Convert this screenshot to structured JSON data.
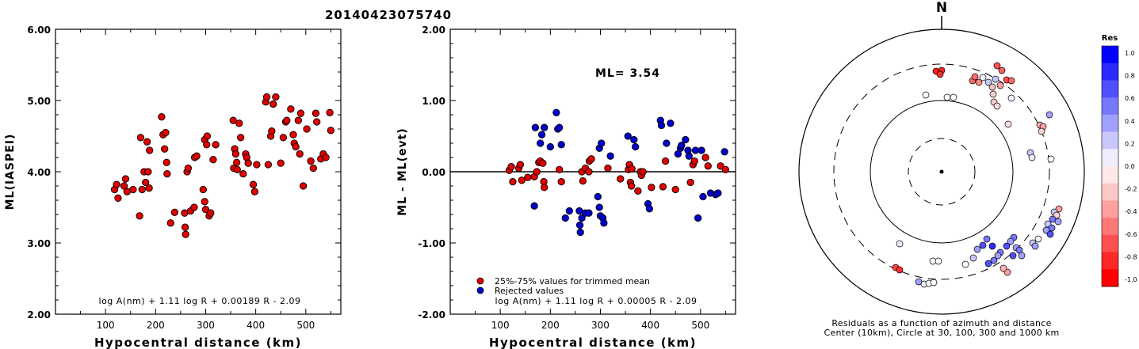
{
  "title": "20140423075740",
  "chart_data": [
    {
      "type": "scatter",
      "xlabel": "Hypocentral distance (km)",
      "ylabel": "ML(IASPEI)",
      "xlim": [
        0,
        570
      ],
      "ylim": [
        2.0,
        6.0
      ],
      "xticks": [
        "100",
        "200",
        "300",
        "400",
        "500"
      ],
      "yticks": [
        "2.00",
        "3.00",
        "4.00",
        "5.00",
        "6.00"
      ],
      "formula": "log A(nm) + 1.11 log R + 0.00189 R - 2.09",
      "marker_color": "#e00000",
      "points": [
        [
          118,
          3.75
        ],
        [
          122,
          3.82
        ],
        [
          125,
          3.63
        ],
        [
          137,
          3.8
        ],
        [
          140,
          3.9
        ],
        [
          143,
          3.72
        ],
        [
          155,
          3.75
        ],
        [
          168,
          3.38
        ],
        [
          170,
          4.48
        ],
        [
          173,
          3.75
        ],
        [
          177,
          4.0
        ],
        [
          180,
          3.85
        ],
        [
          183,
          4.42
        ],
        [
          185,
          4.0
        ],
        [
          187,
          3.77
        ],
        [
          188,
          4.3
        ],
        [
          212,
          4.77
        ],
        [
          215,
          4.52
        ],
        [
          218,
          4.32
        ],
        [
          220,
          4.55
        ],
        [
          222,
          4.13
        ],
        [
          223,
          3.97
        ],
        [
          230,
          3.28
        ],
        [
          238,
          3.43
        ],
        [
          258,
          3.42
        ],
        [
          259,
          3.22
        ],
        [
          260,
          3.12
        ],
        [
          263,
          4.0
        ],
        [
          265,
          4.05
        ],
        [
          270,
          3.45
        ],
        [
          277,
          3.5
        ],
        [
          278,
          4.2
        ],
        [
          282,
          4.22
        ],
        [
          295,
          3.75
        ],
        [
          298,
          3.58
        ],
        [
          298,
          4.45
        ],
        [
          300,
          3.47
        ],
        [
          302,
          4.38
        ],
        [
          303,
          4.5
        ],
        [
          307,
          3.38
        ],
        [
          310,
          3.42
        ],
        [
          315,
          4.17
        ],
        [
          320,
          4.38
        ],
        [
          355,
          4.72
        ],
        [
          356,
          4.05
        ],
        [
          358,
          4.32
        ],
        [
          360,
          4.25
        ],
        [
          362,
          4.13
        ],
        [
          363,
          4.03
        ],
        [
          367,
          4.68
        ],
        [
          370,
          4.48
        ],
        [
          375,
          3.97
        ],
        [
          380,
          4.25
        ],
        [
          382,
          4.2
        ],
        [
          385,
          4.12
        ],
        [
          395,
          3.82
        ],
        [
          398,
          3.72
        ],
        [
          402,
          4.1
        ],
        [
          420,
          4.98
        ],
        [
          422,
          5.05
        ],
        [
          425,
          4.1
        ],
        [
          430,
          4.5
        ],
        [
          432,
          4.57
        ],
        [
          435,
          4.95
        ],
        [
          440,
          5.05
        ],
        [
          450,
          4.12
        ],
        [
          455,
          4.48
        ],
        [
          460,
          4.7
        ],
        [
          462,
          4.72
        ],
        [
          470,
          4.88
        ],
        [
          475,
          4.52
        ],
        [
          477,
          4.4
        ],
        [
          480,
          4.35
        ],
        [
          485,
          4.72
        ],
        [
          488,
          4.25
        ],
        [
          490,
          4.82
        ],
        [
          495,
          3.8
        ],
        [
          502,
          4.6
        ],
        [
          510,
          4.15
        ],
        [
          515,
          4.05
        ],
        [
          520,
          4.82
        ],
        [
          522,
          4.7
        ],
        [
          530,
          4.18
        ],
        [
          535,
          4.25
        ],
        [
          540,
          4.2
        ],
        [
          548,
          4.83
        ],
        [
          550,
          4.58
        ]
      ]
    },
    {
      "type": "scatter",
      "xlabel": "Hypocentral distance (km)",
      "ylabel": "ML - ML(evt)",
      "xlim": [
        0,
        570
      ],
      "ylim": [
        -2.0,
        2.0
      ],
      "xticks": [
        "100",
        "200",
        "300",
        "400",
        "500"
      ],
      "yticks": [
        "-2.00",
        "-1.00",
        "0.00",
        "1.00",
        "2.00"
      ],
      "annotation": "ML= 3.54",
      "formula": "log A(nm) + 1.11 log R + 0.00005 R - 2.09",
      "legend": [
        {
          "label": "25%-75% values for trimmed mean",
          "color": "#e00000"
        },
        {
          "label": "Rejected values",
          "color": "#0000cc"
        }
      ],
      "series": [
        {
          "color": "#e00000",
          "points": [
            [
              118,
              0.02
            ],
            [
              122,
              0.07
            ],
            [
              125,
              -0.14
            ],
            [
              137,
              0.05
            ],
            [
              140,
              0.1
            ],
            [
              143,
              -0.12
            ],
            [
              155,
              -0.08
            ],
            [
              168,
              -0.07
            ],
            [
              173,
              0.0
            ],
            [
              177,
              0.13
            ],
            [
              180,
              0.15
            ],
            [
              185,
              0.12
            ],
            [
              187,
              -0.14
            ],
            [
              188,
              -0.22
            ],
            [
              218,
              0.03
            ],
            [
              222,
              -0.14
            ],
            [
              263,
              0.0
            ],
            [
              265,
              -0.13
            ],
            [
              270,
              0.05
            ],
            [
              277,
              0.0
            ],
            [
              278,
              0.15
            ],
            [
              282,
              0.18
            ],
            [
              315,
              0.05
            ],
            [
              340,
              -0.1
            ],
            [
              356,
              0.03
            ],
            [
              358,
              0.1
            ],
            [
              360,
              -0.15
            ],
            [
              362,
              -0.2
            ],
            [
              363,
              0.04
            ],
            [
              375,
              -0.27
            ],
            [
              380,
              0.0
            ],
            [
              382,
              -0.05
            ],
            [
              385,
              0.0
            ],
            [
              402,
              -0.22
            ],
            [
              425,
              -0.21
            ],
            [
              430,
              0.15
            ],
            [
              450,
              -0.25
            ],
            [
              480,
              -0.15
            ],
            [
              485,
              0.1
            ],
            [
              488,
              0.15
            ],
            [
              510,
              0.2
            ],
            [
              515,
              0.08
            ],
            [
              540,
              0.08
            ],
            [
              550,
              0.03
            ]
          ]
        },
        {
          "color": "#0000cc",
          "points": [
            [
              170,
              0.62
            ],
            [
              168,
              -0.48
            ],
            [
              180,
              0.4
            ],
            [
              183,
              0.52
            ],
            [
              188,
              0.62
            ],
            [
              200,
              0.35
            ],
            [
              212,
              0.83
            ],
            [
              215,
              0.6
            ],
            [
              218,
              0.62
            ],
            [
              222,
              0.38
            ],
            [
              230,
              -0.65
            ],
            [
              238,
              -0.55
            ],
            [
              258,
              -0.55
            ],
            [
              259,
              -0.75
            ],
            [
              260,
              -0.85
            ],
            [
              263,
              -0.65
            ],
            [
              270,
              -0.58
            ],
            [
              277,
              -0.58
            ],
            [
              295,
              -0.35
            ],
            [
              298,
              -0.5
            ],
            [
              298,
              0.33
            ],
            [
              300,
              -0.62
            ],
            [
              302,
              0.4
            ],
            [
              305,
              -0.65
            ],
            [
              307,
              -0.72
            ],
            [
              320,
              0.22
            ],
            [
              355,
              0.5
            ],
            [
              367,
              0.45
            ],
            [
              370,
              0.35
            ],
            [
              395,
              -0.45
            ],
            [
              398,
              -0.52
            ],
            [
              420,
              0.72
            ],
            [
              422,
              0.65
            ],
            [
              432,
              0.4
            ],
            [
              440,
              0.68
            ],
            [
              455,
              0.25
            ],
            [
              460,
              0.33
            ],
            [
              462,
              0.37
            ],
            [
              470,
              0.45
            ],
            [
              475,
              0.3
            ],
            [
              477,
              0.22
            ],
            [
              490,
              0.3
            ],
            [
              495,
              -0.65
            ],
            [
              502,
              0.3
            ],
            [
              505,
              -0.35
            ],
            [
              520,
              -0.3
            ],
            [
              530,
              -0.32
            ],
            [
              535,
              -0.3
            ],
            [
              548,
              0.28
            ]
          ]
        }
      ]
    },
    {
      "type": "scatter",
      "north_label": "N",
      "caption_line1": "Residuals as a function of azimuth and distance",
      "caption_line2": "Center (10km), Circle at 30, 100, 300 and 1000 km",
      "colorbar": {
        "title": "Res",
        "ticks": [
          "1.0",
          "0.8",
          "0.6",
          "0.4",
          "0.2",
          "0.0",
          "-0.2",
          "-0.4",
          "-0.6",
          "-0.8",
          "-1.0"
        ],
        "colors": [
          "#0000ff",
          "#2a2aff",
          "#5050ff",
          "#7777ff",
          "#a0a0ff",
          "#c8c8ff",
          "#eeeeff",
          "#ffe8e8",
          "#ffc8c8",
          "#ff9f9f",
          "#ff7777",
          "#ff5050",
          "#ff2828",
          "#ff0000"
        ]
      },
      "stations": [
        [
          1181,
          90,
          "#ff2020"
        ],
        [
          1188,
          89,
          "#ff2020"
        ],
        [
          1186,
          94,
          "#ee3030"
        ],
        [
          1227,
          102,
          "#ff6a6a"
        ],
        [
          1235,
          104,
          "#ff8a8a"
        ],
        [
          1230,
          97,
          "#ff6a6a"
        ],
        [
          1258,
          83,
          "#ff5050"
        ],
        [
          1264,
          89,
          "#ff6060"
        ],
        [
          1270,
          101,
          "#ff5050"
        ],
        [
          1276,
          102,
          "#ff6a6a"
        ],
        [
          1240,
          98,
          "#eeeeff"
        ],
        [
          1247,
          104,
          "#c8c8ff"
        ],
        [
          1252,
          110,
          "#ffc0c0"
        ],
        [
          1256,
          100,
          "#c8c8ff"
        ],
        [
          1262,
          108,
          "#ffa0a0"
        ],
        [
          1253,
          119,
          "#ffd0d0"
        ],
        [
          1254,
          129,
          "#ffc8c8"
        ],
        [
          1258,
          134,
          "#ffd8d8"
        ],
        [
          1276,
          124,
          "#eeeeff"
        ],
        [
          1272,
          157,
          "#ffe0e0"
        ],
        [
          1168,
          120,
          "#ffffff"
        ],
        [
          1195,
          123,
          "#ffffff"
        ],
        [
          1203,
          123,
          "#ffffff"
        ],
        [
          1312,
          158,
          "#ffb0b0"
        ],
        [
          1316,
          160,
          "#ffa0a0"
        ],
        [
          1314,
          166,
          "#ffd0d0"
        ],
        [
          1324,
          145,
          "#a0a0ff"
        ],
        [
          1300,
          193,
          "#c8c8ff"
        ],
        [
          1302,
          199,
          "#eeeeff"
        ],
        [
          1326,
          201,
          "#ffffff"
        ],
        [
          1336,
          264,
          "#ffa0a0"
        ],
        [
          1330,
          268,
          "#c8c8ff"
        ],
        [
          1333,
          272,
          "#ffd0d0"
        ],
        [
          1328,
          277,
          "#7777ff"
        ],
        [
          1335,
          280,
          "#a0a0ff"
        ],
        [
          1322,
          283,
          "#c8c8ff"
        ],
        [
          1327,
          288,
          "#7777ff"
        ],
        [
          1320,
          291,
          "#a0a0ff"
        ],
        [
          1325,
          296,
          "#5050ff"
        ],
        [
          1310,
          302,
          "#eeeeff"
        ],
        [
          1303,
          307,
          "#c8c8ff"
        ],
        [
          1306,
          311,
          "#a0a0ff"
        ],
        [
          1279,
          300,
          "#7777ff"
        ],
        [
          1275,
          305,
          "#a0a0ff"
        ],
        [
          1270,
          311,
          "#5050ff"
        ],
        [
          1262,
          319,
          "#7777ff"
        ],
        [
          1259,
          323,
          "#a0a0ff"
        ],
        [
          1254,
          329,
          "#7777ff"
        ],
        [
          1247,
          333,
          "#5050ff"
        ],
        [
          1252,
          311,
          "#2a2aff"
        ],
        [
          1245,
          302,
          "#7777ff"
        ],
        [
          1240,
          310,
          "#5050ff"
        ],
        [
          1233,
          315,
          "#a0a0ff"
        ],
        [
          1228,
          326,
          "#c8c8ff"
        ],
        [
          1282,
          313,
          "#a0a0ff"
        ],
        [
          1286,
          316,
          "#7777ff"
        ],
        [
          1289,
          323,
          "#a0a0ff"
        ],
        [
          1278,
          323,
          "#5050ff"
        ],
        [
          1271,
          344,
          "#ffa0a0"
        ],
        [
          1266,
          339,
          "#ffb0b0"
        ],
        [
          1135,
          308,
          "#eeeeff"
        ],
        [
          1130,
          338,
          "#ff4040"
        ],
        [
          1135,
          341,
          "#ff3030"
        ],
        [
          1177,
          330,
          "#ffffff"
        ],
        [
          1184,
          330,
          "#ffffff"
        ],
        [
          1159,
          356,
          "#a0a0ff"
        ],
        [
          1166,
          359,
          "#eeeeff"
        ],
        [
          1172,
          358,
          "#ffffff"
        ],
        [
          1178,
          357,
          "#ffffff"
        ],
        [
          1218,
          334,
          "#ffffff"
        ]
      ]
    }
  ]
}
